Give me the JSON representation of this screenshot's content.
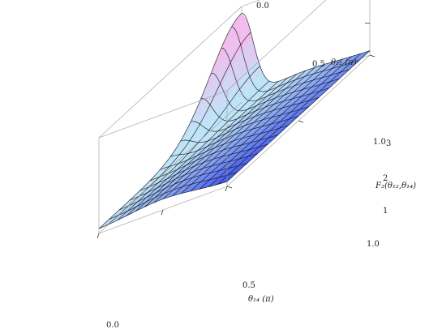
{
  "chart_data": {
    "type": "surface3d",
    "title": "",
    "x_axis": {
      "label": "θ₁₄ (π)",
      "range": [
        0,
        1
      ],
      "ticks": [
        "0.0",
        "0.5",
        "1.0"
      ]
    },
    "y_axis": {
      "label": "θ₁₂ (π)",
      "range": [
        0,
        1
      ],
      "ticks": [
        "0.0",
        "0.5",
        "1.0"
      ]
    },
    "z_axis": {
      "label": "F₂(θ₁₂,θ₁₄)",
      "range": [
        0,
        3
      ],
      "ticks": [
        "1",
        "2",
        "3"
      ]
    },
    "grid": false,
    "mesh_lines": true,
    "colors": {
      "low": "#3c50ee",
      "mid": "#bfe4f8",
      "high": "#f2bcec",
      "mesh": "#111111",
      "box": "#999999"
    },
    "surface_samples_x": [
      0,
      0.1,
      0.2,
      0.3,
      0.4,
      0.5,
      0.6,
      0.7,
      0.8,
      0.9,
      1.0
    ],
    "surface_samples_y": [
      0,
      0.1,
      0.2,
      0.3,
      0.4,
      0.5,
      0.6,
      0.7,
      0.8,
      0.9,
      1.0
    ],
    "peak": {
      "x": 0.0,
      "y": 1.0,
      "z": 3.0
    }
  }
}
